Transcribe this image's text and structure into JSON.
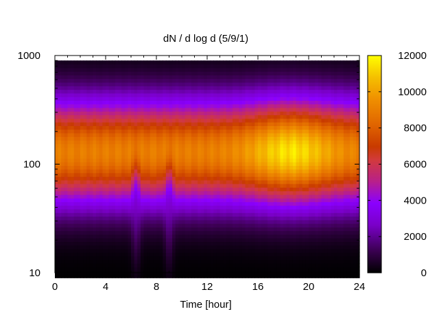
{
  "chart_data": {
    "type": "heatmap",
    "title": "dN / d log d (5/9/1)",
    "xlabel": "Time [hour]",
    "ylabel": "",
    "xlim": [
      0,
      24
    ],
    "ylim": [
      10,
      1000
    ],
    "y_scale": "log",
    "x_ticks": [
      "0",
      "4",
      "8",
      "12",
      "16",
      "20",
      "24"
    ],
    "y_ticks": [
      "10",
      "100",
      "1000"
    ],
    "colorbar": {
      "range": [
        0,
        12000
      ],
      "ticks": [
        "0",
        "2000",
        "4000",
        "6000",
        "8000",
        "10000",
        "12000"
      ],
      "palette": [
        "#000000",
        "#3a0050",
        "#7a00c8",
        "#8a00ff",
        "#b8208a",
        "#d23a3c",
        "#c83a00",
        "#e06400",
        "#f09000",
        "#f5c000",
        "#ffff00"
      ]
    },
    "data_extent_y": [
      9,
      900
    ],
    "band_peak_y": 130,
    "band_peak_value": 9000,
    "band_peak_value_max": 11500,
    "band_peak_value_max_x": 18.6,
    "dips": [
      {
        "x": 6.4,
        "label_y": 100
      },
      {
        "x": 9.0,
        "label_y": 100
      }
    ],
    "grid": false,
    "legend": "none"
  }
}
